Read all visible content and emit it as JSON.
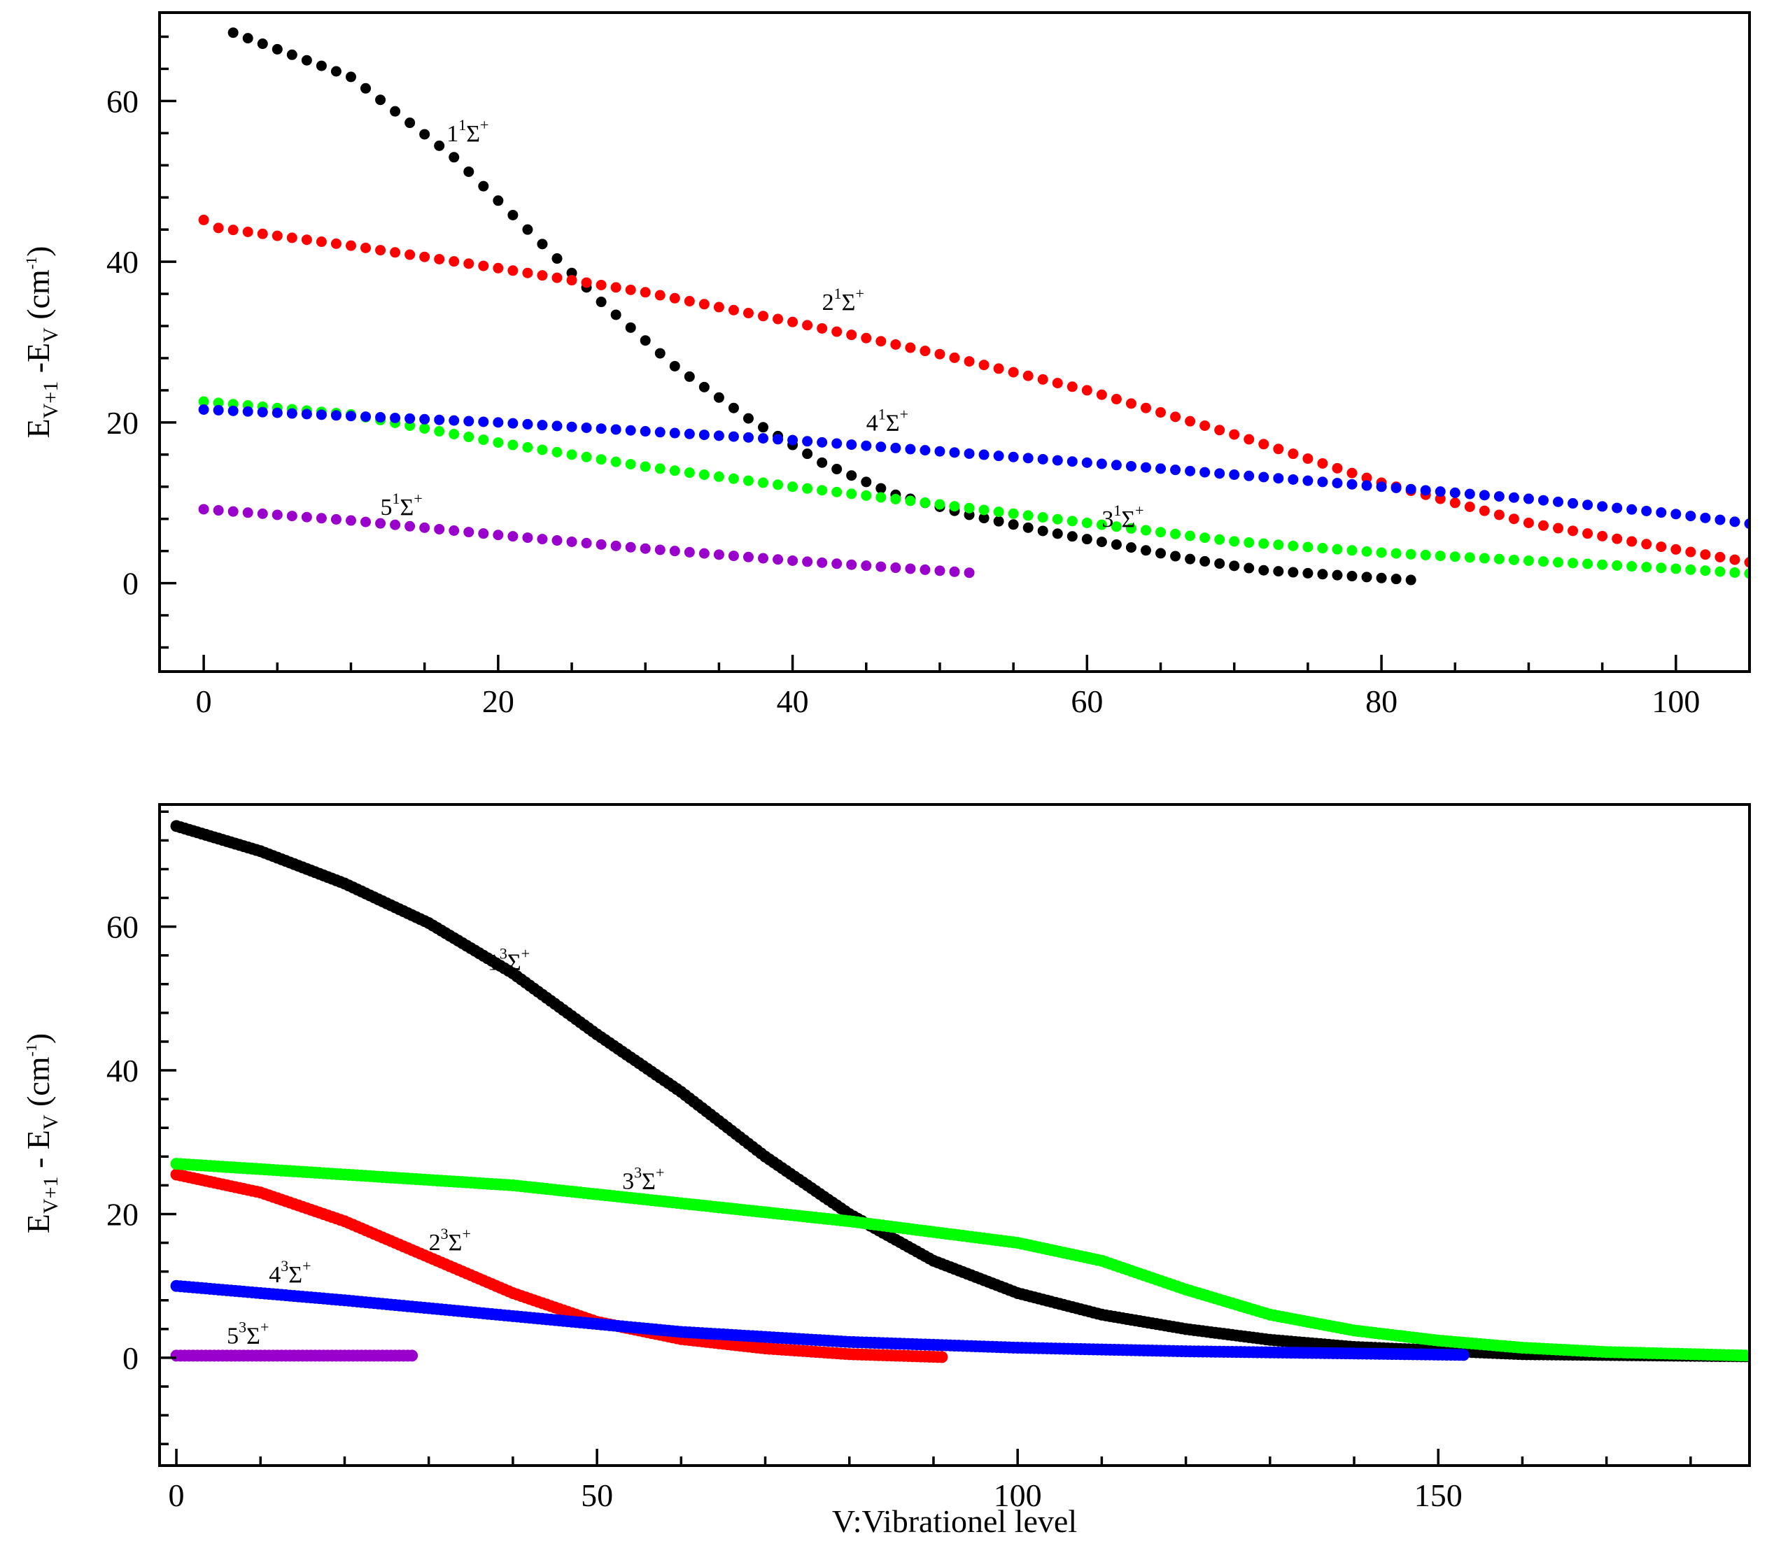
{
  "chart_data": [
    {
      "type": "scatter",
      "title": "",
      "xlabel": "",
      "ylabel": {
        "main": "E",
        "sub1": "V+1",
        "mid": " -E",
        "sub2": "V",
        "unit": " (cm",
        "exp": "-1",
        "close": ")"
      },
      "xlim": [
        -3,
        105
      ],
      "ylim": [
        -11,
        71
      ],
      "xticks": [
        0,
        20,
        40,
        60,
        80,
        100
      ],
      "xtick_labels": [
        "0",
        "20",
        "40",
        "60",
        "80",
        "100"
      ],
      "yticks": [
        0,
        20,
        40,
        60
      ],
      "ytick_labels": [
        "0",
        "20",
        "40",
        "60"
      ],
      "series": [
        {
          "name": "1¹Σ⁺",
          "label": {
            "base": "1",
            "sup": "1",
            "sigma": "Σ",
            "plus": "+"
          },
          "color": "#000000",
          "points": [
            [
              2,
              68.5
            ],
            [
              10,
              63
            ],
            [
              17,
              53
            ],
            [
              22,
              44
            ],
            [
              27,
              35
            ],
            [
              32,
              27
            ],
            [
              37,
              20.5
            ],
            [
              42,
              15
            ],
            [
              47,
              11
            ],
            [
              52,
              8.5
            ],
            [
              57,
              6.5
            ],
            [
              62,
              4.8
            ],
            [
              67,
              3
            ],
            [
              72,
              1.6
            ],
            [
              77,
              1
            ],
            [
              82,
              0.4
            ]
          ],
          "range": [
            2,
            82
          ],
          "label_at": [
            16.5,
            55
          ]
        },
        {
          "name": "2¹Σ⁺",
          "label": {
            "base": "2",
            "sup": "1",
            "sigma": "Σ",
            "plus": "+"
          },
          "color": "#ff0000",
          "points": [
            [
              0,
              45.2
            ],
            [
              1,
              44.2
            ],
            [
              10,
              42
            ],
            [
              20,
              39.2
            ],
            [
              30,
              36.2
            ],
            [
              40,
              32.5
            ],
            [
              50,
              28.5
            ],
            [
              60,
              24
            ],
            [
              70,
              18.5
            ],
            [
              80,
              12.5
            ],
            [
              90,
              7.5
            ],
            [
              100,
              4.2
            ],
            [
              105,
              2.6
            ]
          ],
          "range": [
            0,
            105
          ],
          "label_at": [
            42,
            34
          ]
        },
        {
          "name": "3¹Σ⁺",
          "label": {
            "base": "3",
            "sup": "1",
            "sigma": "Σ",
            "plus": "+"
          },
          "color": "#00ff00",
          "points": [
            [
              0,
              22.6
            ],
            [
              10,
              21
            ],
            [
              20,
              17.5
            ],
            [
              30,
              14.5
            ],
            [
              40,
              12
            ],
            [
              50,
              9.8
            ],
            [
              60,
              7.5
            ],
            [
              70,
              5.2
            ],
            [
              80,
              3.8
            ],
            [
              90,
              2.8
            ],
            [
              100,
              1.8
            ],
            [
              105,
              1.2
            ]
          ],
          "range": [
            0,
            105
          ],
          "label_at": [
            61,
            7
          ]
        },
        {
          "name": "4¹Σ⁺",
          "label": {
            "base": "4",
            "sup": "1",
            "sigma": "Σ",
            "plus": "+"
          },
          "color": "#0000ff",
          "points": [
            [
              0,
              21.6
            ],
            [
              20,
              20
            ],
            [
              40,
              17.8
            ],
            [
              60,
              15
            ],
            [
              80,
              12
            ],
            [
              90,
              10.5
            ],
            [
              100,
              8.6
            ],
            [
              105,
              7.4
            ]
          ],
          "range": [
            0,
            105
          ],
          "label_at": [
            45,
            19
          ]
        },
        {
          "name": "5¹Σ⁺",
          "label": {
            "base": "5",
            "sup": "1",
            "sigma": "Σ",
            "plus": "+"
          },
          "color": "#9900cc",
          "points": [
            [
              0,
              9.2
            ],
            [
              10,
              7.8
            ],
            [
              20,
              6
            ],
            [
              30,
              4.3
            ],
            [
              40,
              2.8
            ],
            [
              52,
              1.3
            ]
          ],
          "range": [
            0,
            52
          ],
          "label_at": [
            12,
            8.5
          ]
        }
      ]
    },
    {
      "type": "scatter",
      "title": "",
      "xlabel": "V:Vibrationel level",
      "ylabel": {
        "main": "E",
        "sub1": "V+1",
        "mid": " - E",
        "sub2": "V",
        "unit": " (cm",
        "exp": "-1",
        "close": ")"
      },
      "xlim": [
        -2,
        187
      ],
      "ylim": [
        -15,
        77
      ],
      "xticks": [
        0,
        50,
        100,
        150
      ],
      "xtick_labels": [
        "0",
        "50",
        "100",
        "150"
      ],
      "yticks": [
        0,
        20,
        40,
        60
      ],
      "ytick_labels": [
        "0",
        "20",
        "40",
        "60"
      ],
      "series": [
        {
          "name": "1³Σ⁺",
          "label": {
            "base": "1",
            "sup": "3",
            "sigma": "Σ",
            "plus": "+"
          },
          "color": "#000000",
          "points": [
            [
              0,
              74
            ],
            [
              10,
              70.5
            ],
            [
              20,
              66
            ],
            [
              30,
              60.5
            ],
            [
              40,
              53.5
            ],
            [
              50,
              45
            ],
            [
              60,
              37
            ],
            [
              70,
              28
            ],
            [
              80,
              20
            ],
            [
              90,
              13.5
            ],
            [
              100,
              9
            ],
            [
              110,
              6
            ],
            [
              120,
              4
            ],
            [
              130,
              2.5
            ],
            [
              140,
              1.5
            ],
            [
              150,
              1
            ],
            [
              160,
              0.5
            ],
            [
              187,
              0.2
            ]
          ],
          "range": [
            0,
            187
          ],
          "label_at": [
            37,
            54
          ]
        },
        {
          "name": "2³Σ⁺",
          "label": {
            "base": "2",
            "sup": "3",
            "sigma": "Σ",
            "plus": "+"
          },
          "color": "#ff0000",
          "points": [
            [
              0,
              25.5
            ],
            [
              10,
              23
            ],
            [
              20,
              19
            ],
            [
              30,
              14
            ],
            [
              40,
              9
            ],
            [
              50,
              5
            ],
            [
              60,
              2.6
            ],
            [
              70,
              1.3
            ],
            [
              80,
              0.5
            ],
            [
              91,
              0.1
            ]
          ],
          "range": [
            0,
            91
          ],
          "label_at": [
            30,
            15
          ]
        },
        {
          "name": "3³Σ⁺",
          "label": {
            "base": "3",
            "sup": "3",
            "sigma": "Σ",
            "plus": "+"
          },
          "color": "#00ff00",
          "points": [
            [
              0,
              27
            ],
            [
              20,
              25.5
            ],
            [
              40,
              24
            ],
            [
              60,
              21.5
            ],
            [
              80,
              19
            ],
            [
              100,
              16
            ],
            [
              110,
              13.5
            ],
            [
              120,
              9.5
            ],
            [
              130,
              6
            ],
            [
              140,
              3.8
            ],
            [
              150,
              2.4
            ],
            [
              160,
              1.4
            ],
            [
              170,
              0.8
            ],
            [
              187,
              0.3
            ]
          ],
          "range": [
            0,
            187
          ],
          "label_at": [
            53,
            23.5
          ]
        },
        {
          "name": "4³Σ⁺",
          "label": {
            "base": "4",
            "sup": "3",
            "sigma": "Σ",
            "plus": "+"
          },
          "color": "#0000ff",
          "points": [
            [
              0,
              10
            ],
            [
              20,
              8
            ],
            [
              40,
              5.8
            ],
            [
              60,
              3.6
            ],
            [
              80,
              2.2
            ],
            [
              100,
              1.4
            ],
            [
              120,
              0.9
            ],
            [
              140,
              0.6
            ],
            [
              153,
              0.4
            ]
          ],
          "range": [
            0,
            153
          ],
          "label_at": [
            11,
            10.5
          ]
        },
        {
          "name": "5³Σ⁺",
          "label": {
            "base": "5",
            "sup": "3",
            "sigma": "Σ",
            "plus": "+"
          },
          "color": "#9900cc",
          "points": [
            [
              0,
              0.3
            ],
            [
              28,
              0.3
            ]
          ],
          "range": [
            0,
            28
          ],
          "label_at": [
            6,
            2
          ]
        }
      ]
    }
  ]
}
